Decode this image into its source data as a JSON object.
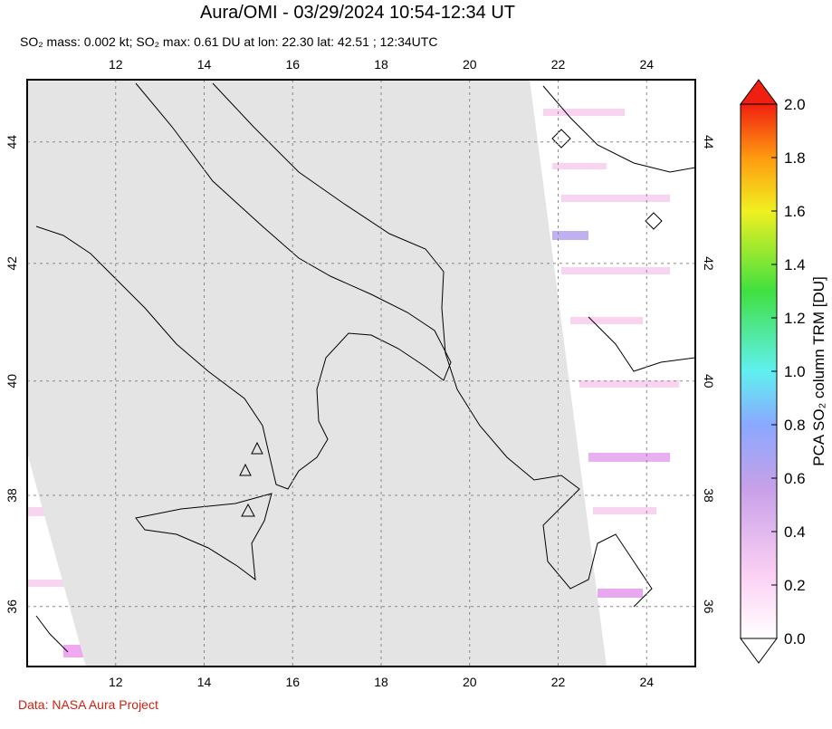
{
  "header": {
    "title": "Aura/OMI - 03/29/2024 10:54-12:34 UT",
    "subtitle": "SO₂ mass: 0.002 kt; SO₂ max: 0.61 DU at lon: 22.30 lat: 42.51 ; 12:34UTC"
  },
  "map": {
    "lonlim": [
      10,
      25.1
    ],
    "latlim": [
      34.9,
      45
    ],
    "lon_ticks": [
      12,
      14,
      16,
      18,
      20,
      22,
      24
    ],
    "lat_ticks": [
      36,
      38,
      40,
      42,
      44
    ]
  },
  "colorbar": {
    "label": "PCA SO₂ column TRM [DU]",
    "lim": [
      0,
      2
    ],
    "ticks": [
      {
        "value": 0,
        "label": "0.0"
      },
      {
        "value": 0.2,
        "label": "0.2"
      },
      {
        "value": 0.4,
        "label": "0.4"
      },
      {
        "value": 0.6,
        "label": "0.6"
      },
      {
        "value": 0.8,
        "label": "0.8"
      },
      {
        "value": 1,
        "label": "1.0"
      },
      {
        "value": 1.2,
        "label": "1.2"
      },
      {
        "value": 1.4,
        "label": "1.4"
      },
      {
        "value": 1.6,
        "label": "1.6"
      },
      {
        "value": 1.8,
        "label": "1.8"
      },
      {
        "value": 2,
        "label": "2.0"
      }
    ]
  },
  "footer": {
    "credit": "Data: NASA Aura Project"
  }
}
